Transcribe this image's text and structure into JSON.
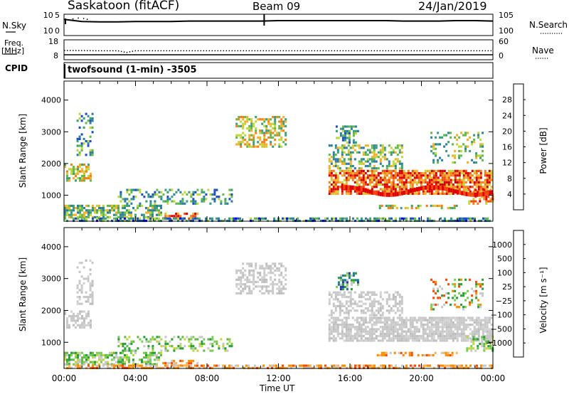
{
  "header": {
    "station": "Saskatoon (fitACF)",
    "beam": "Beam 09",
    "date": "24/Jan/2019"
  },
  "left_labels": {
    "nsky": "N.Sky",
    "freq_top": "Freq.",
    "freq_unit": "[MHz]",
    "cpid": "CPID"
  },
  "right_labels": {
    "nsearch": "N.Search",
    "nave": "Nave"
  },
  "cpid_text": "twofsound (1-min) -3505",
  "colors": {
    "power_bar": [
      "#0000ff",
      "#1d4fbf",
      "#2f7fa0",
      "#3b9f79",
      "#66b84a",
      "#bed73a",
      "#f3b12a",
      "#f77f1a",
      "#f04a10",
      "#e00000",
      "#cc0000"
    ],
    "velocity_bar": [
      "#ff0000",
      "#ff4a00",
      "#ff8c00",
      "#ffb25b",
      "#c8c8c8",
      "#c8c8c8",
      "#7ccf55",
      "#2a9e38",
      "#1f7d8a",
      "#2338b0"
    ],
    "noise_line": "#000000"
  },
  "chart_data": [
    {
      "type": "line",
      "panel": "noise",
      "x": [
        0,
        1,
        2,
        3,
        4,
        5,
        6,
        7,
        8,
        9,
        10,
        11,
        12,
        13,
        14,
        15,
        16,
        17,
        18,
        19,
        20,
        21,
        22,
        23,
        24
      ],
      "series": [
        {
          "name": "N.Sky",
          "values": [
            3.8,
            3.3,
            3.2,
            3.2,
            3.3,
            3.3,
            3.3,
            3.4,
            3.4,
            3.4,
            3.4,
            3.4,
            3.5,
            3.5,
            3.5,
            3.5,
            3.5,
            3.5,
            3.5,
            3.4,
            3.4,
            3.4,
            3.5,
            3.5,
            3.4
          ]
        }
      ],
      "y_ticks_left": [
        "10^5",
        "10^0"
      ],
      "y_ticks_right": [
        "10^5",
        "10^0"
      ]
    },
    {
      "type": "line",
      "panel": "frequency",
      "x": [
        0,
        2,
        3,
        3.5,
        4,
        6,
        8,
        10,
        12,
        14,
        16,
        18,
        20,
        22,
        24
      ],
      "series": [
        {
          "name": "Nave",
          "values": [
            28,
            27,
            27,
            22,
            27,
            27,
            27,
            27,
            27,
            27,
            27,
            27,
            27,
            27,
            27
          ]
        },
        {
          "name": "Freq.",
          "values": [
            10.5,
            10.5,
            10.5,
            10.5,
            10.5,
            10.5,
            10.5,
            10.5,
            10.5,
            10.5,
            10.5,
            10.5,
            10.5,
            10.5,
            10.5
          ]
        }
      ],
      "y_ticks_left": [
        "18",
        "8"
      ],
      "y_ticks_right": [
        "60",
        "0"
      ]
    },
    {
      "type": "heatmap",
      "panel": "power",
      "ylabel": "Slant Range [km]",
      "xlabel": "Time UT",
      "x_ticks": [
        "00:00",
        "04:00",
        "08:00",
        "12:00",
        "16:00",
        "20:00",
        "00:00"
      ],
      "y_ticks": [
        1000,
        2000,
        3000,
        4000
      ],
      "ylim": [
        180,
        4600
      ],
      "xlim": [
        0,
        24
      ],
      "colorbar_label": "Power [dB]",
      "colorbar_ticks": [
        "4",
        "8",
        "12",
        "16",
        "20",
        "24",
        "28"
      ]
    },
    {
      "type": "heatmap",
      "panel": "velocity",
      "ylabel": "Slant Range [km]",
      "xlabel": "Time UT",
      "x_ticks": [
        "00:00",
        "04:00",
        "08:00",
        "12:00",
        "16:00",
        "20:00",
        "00:00"
      ],
      "y_ticks": [
        1000,
        2000,
        3000,
        4000
      ],
      "ylim": [
        180,
        4600
      ],
      "xlim": [
        0,
        24
      ],
      "colorbar_label": "Velocity [m s⁻¹]",
      "colorbar_ticks": [
        "1000",
        "500",
        "100",
        "25",
        "−25",
        "−100",
        "−500",
        "−1000"
      ]
    }
  ]
}
